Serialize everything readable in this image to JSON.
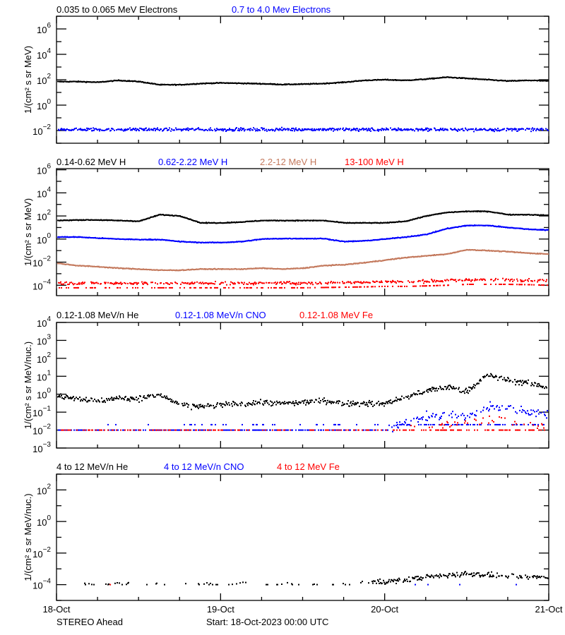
{
  "chart_data": [
    {
      "type": "scatter",
      "x_axis": {
        "type": "time",
        "ticks": [
          "18-Oct",
          "19-Oct",
          "20-Oct",
          "21-Oct"
        ],
        "range_hours": [
          0,
          72
        ],
        "x_hours_step": 3
      },
      "ylabel": "1/(cm² s sr MeV)",
      "yscale": "log",
      "ylim_exp": [
        -3,
        7
      ],
      "ytick_labels_exp": [
        -2,
        0,
        2,
        4,
        6
      ],
      "series": [
        {
          "name": "0.035 to 0.065 MeV Electrons",
          "color": "#000000",
          "values": [
            71,
            71,
            63,
            89,
            71,
            40,
            40,
            50,
            56,
            52,
            48,
            42,
            45,
            50,
            63,
            89,
            100,
            89,
            112,
            158,
            126,
            100,
            79,
            89,
            79
          ]
        },
        {
          "name": "0.7 to 4.0 Mev Electrons",
          "color": "#0000ff",
          "values": [
            0.012,
            0.012,
            0.012,
            0.012,
            0.012,
            0.012,
            0.012,
            0.012,
            0.012,
            0.012,
            0.012,
            0.012,
            0.012,
            0.012,
            0.012,
            0.012,
            0.012,
            0.012,
            0.012,
            0.012,
            0.012,
            0.012,
            0.012,
            0.012,
            0.012
          ]
        }
      ]
    },
    {
      "type": "scatter",
      "ylabel": "1/(cm² s sr MeV)",
      "yscale": "log",
      "ylim_exp": [
        -4.9,
        6.1
      ],
      "ytick_labels_exp": [
        -4,
        -2,
        0,
        2,
        4,
        6
      ],
      "series": [
        {
          "name": "0.14-0.62 MeV H",
          "color": "#000000",
          "values": [
            40,
            45,
            45,
            40,
            35,
            130,
            100,
            25,
            25,
            30,
            40,
            40,
            40,
            40,
            25,
            25,
            25,
            35,
            100,
            200,
            250,
            250,
            130,
            130,
            110
          ]
        },
        {
          "name": "0.62-2.22 MeV H",
          "color": "#0000ff",
          "values": [
            1.5,
            1.5,
            1.2,
            1.0,
            0.9,
            0.9,
            0.6,
            0.5,
            0.5,
            0.6,
            1.0,
            1.1,
            1.1,
            1.1,
            0.6,
            0.7,
            1.0,
            1.5,
            2.5,
            8,
            15,
            15,
            10,
            7,
            6
          ]
        },
        {
          "name": "2.2-12 MeV H",
          "color": "#c47a5e",
          "values": [
            0.008,
            0.005,
            0.004,
            0.003,
            0.0025,
            0.002,
            0.002,
            0.0025,
            0.0025,
            0.0025,
            0.003,
            0.0025,
            0.003,
            0.005,
            0.006,
            0.009,
            0.015,
            0.025,
            0.035,
            0.05,
            0.12,
            0.1,
            0.08,
            0.06,
            0.05
          ]
        },
        {
          "name": "13-100 MeV H",
          "color": "#ff0000",
          "values": [
            0.00015,
            0.00015,
            0.00015,
            0.00015,
            0.00015,
            0.00015,
            0.00015,
            0.00015,
            0.00015,
            0.00015,
            0.00015,
            0.00015,
            0.00015,
            0.00016,
            0.00017,
            0.00018,
            0.0002,
            0.0002,
            0.00022,
            0.00025,
            0.0003,
            0.0003,
            0.0003,
            0.00028,
            0.00025
          ]
        }
      ]
    },
    {
      "type": "scatter",
      "ylabel": "1/(cm² s sr MeV/nuc.)",
      "yscale": "log",
      "ylim_exp": [
        -3,
        4
      ],
      "ytick_labels_exp": [
        -3,
        -2,
        -1,
        0,
        1,
        2,
        3,
        4
      ],
      "series": [
        {
          "name": "0.12-1.08 MeV/n He",
          "color": "#000000",
          "values": [
            0.8,
            0.6,
            0.4,
            0.6,
            0.6,
            0.9,
            0.25,
            0.2,
            0.25,
            0.3,
            0.35,
            0.3,
            0.35,
            0.45,
            0.3,
            0.3,
            0.3,
            0.7,
            1.5,
            2.5,
            1.5,
            12,
            6,
            4,
            2.5
          ]
        },
        {
          "name": "0.12-1.08 MeV/n CNO",
          "color": "#0000ff",
          "values": [
            0.012,
            0.012,
            0.012,
            0.012,
            0.012,
            0.012,
            0.012,
            0.012,
            0.012,
            0.012,
            0.012,
            0.012,
            0.012,
            0.012,
            0.012,
            0.012,
            0.012,
            0.03,
            0.05,
            0.07,
            0.05,
            0.2,
            0.2,
            0.1,
            0.07
          ]
        },
        {
          "name": "0.12-1.08 MeV Fe",
          "color": "#ff0000",
          "values": [
            0.01,
            0.01,
            0.01,
            0.01,
            0.01,
            0.01,
            0.01,
            0.01,
            0.01,
            0.01,
            0.01,
            0.01,
            0.01,
            0.01,
            0.01,
            0.01,
            0.01,
            0.012,
            0.015,
            0.02,
            0.03,
            0.04,
            0.03,
            0.02,
            0.015
          ]
        }
      ]
    },
    {
      "type": "scatter",
      "ylabel": "1/(cm² s sr MeV/nuc.)",
      "yscale": "log",
      "ylim_exp": [
        -5,
        3
      ],
      "ytick_labels_exp": [
        -4,
        -2,
        0,
        2
      ],
      "series": [
        {
          "name": "4 to 12 MeV/n He",
          "color": "#000000",
          "values": [
            null,
            0.0001,
            0.0001,
            0.0001,
            0.0001,
            0.0001,
            0.0001,
            0.0001,
            0.0001,
            0.0001,
            0.0001,
            0.0001,
            0.0001,
            0.0001,
            0.0001,
            0.00015,
            0.00015,
            0.0002,
            0.0003,
            0.0004,
            0.0005,
            0.0004,
            0.00035,
            0.0003,
            0.0003
          ]
        },
        {
          "name": "4 to 12 MeV/n CNO",
          "color": "#0000ff",
          "values": [
            null,
            null,
            null,
            null,
            null,
            null,
            null,
            null,
            null,
            null,
            null,
            null,
            null,
            null,
            null,
            null,
            null,
            1.2e-05,
            1.2e-05,
            1.2e-05,
            1.2e-05,
            1.2e-05,
            1.2e-05,
            1.2e-05,
            1.2e-05
          ]
        },
        {
          "name": "4 to 12 MeV Fe",
          "color": "#ff0000",
          "values": [
            null,
            null,
            0.0001,
            null,
            null,
            null,
            null,
            null,
            null,
            null,
            null,
            null,
            null,
            null,
            null,
            null,
            null,
            null,
            null,
            null,
            null,
            null,
            null,
            null,
            null
          ]
        }
      ]
    }
  ],
  "footer": {
    "spacecraft": "STEREO Ahead",
    "start": "Start: 18-Oct-2023 00:00 UTC"
  }
}
